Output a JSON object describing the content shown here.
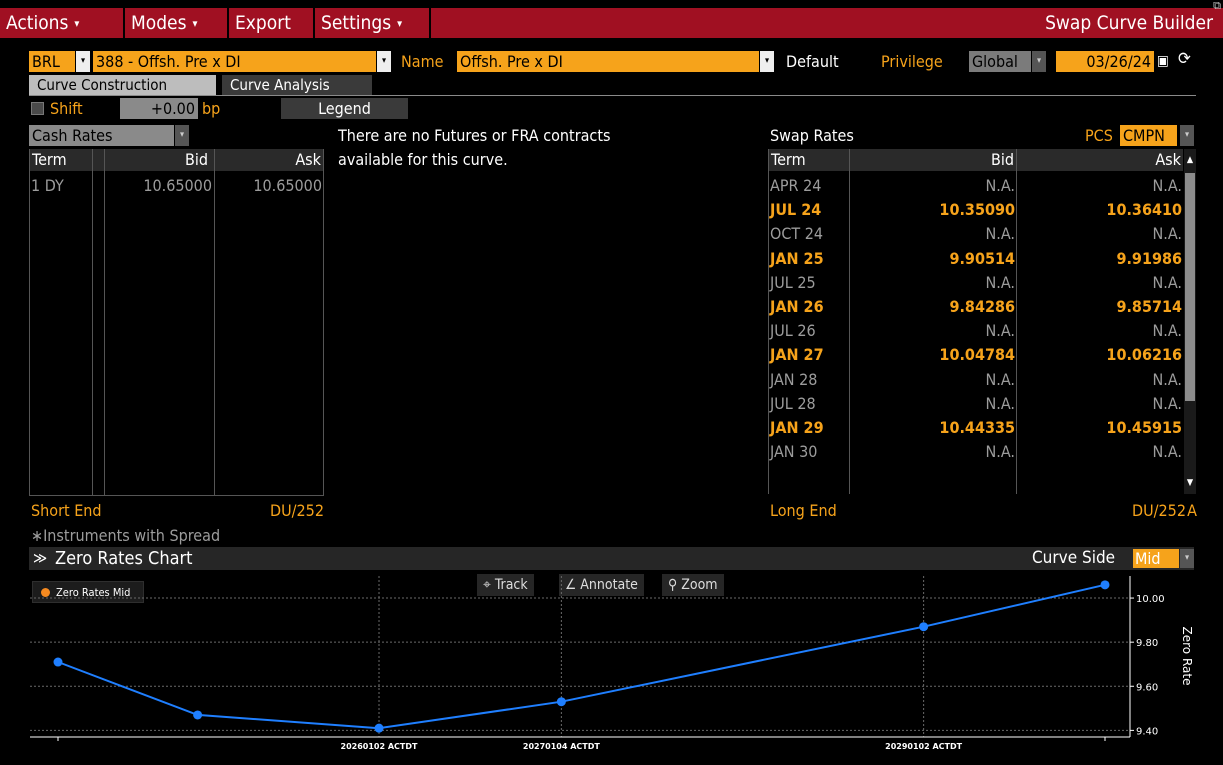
{
  "menu": {
    "actions": "Actions",
    "modes": "Modes",
    "export": "Export",
    "settings": "Settings",
    "app_title": "Swap Curve Builder"
  },
  "curve": {
    "currency": "BRL",
    "curve_id": "388 - Offsh. Pre x DI",
    "name_label": "Name",
    "name_value": "Offsh. Pre x DI",
    "default_label": "Default",
    "privilege_label": "Privilege",
    "privilege_value": "Global",
    "date": "03/26/24"
  },
  "tabs": [
    {
      "label": "Curve Construction",
      "active": true
    },
    {
      "label": "Curve Analysis",
      "active": false
    }
  ],
  "controls": {
    "shift_label": "Shift",
    "shift_value": "+0.00",
    "shift_unit": "bp",
    "legend_button": "Legend"
  },
  "cash": {
    "selector": "Cash Rates",
    "columns": [
      "Term",
      "Bid",
      "Ask"
    ],
    "rows": [
      {
        "term": "1 DY",
        "bid": "10.65000",
        "ask": "10.65000"
      }
    ],
    "short_end_label": "Short End",
    "day_count": "DU/252"
  },
  "futures_message_line1": "There are no Futures or FRA contracts",
  "futures_message_line2": "available for this curve.",
  "instruments_note": "∗Instruments with Spread",
  "swap": {
    "title": "Swap Rates",
    "source_label": "PCS",
    "source_value": "CMPN",
    "columns": [
      "Term",
      "Bid",
      "Ask"
    ],
    "rows": [
      {
        "term": "APR 24",
        "bid": "N.A.",
        "ask": "N.A.",
        "active": false
      },
      {
        "term": "JUL 24",
        "bid": "10.35090",
        "ask": "10.36410",
        "active": true
      },
      {
        "term": "OCT 24",
        "bid": "N.A.",
        "ask": "N.A.",
        "active": false
      },
      {
        "term": "JAN 25",
        "bid": "9.90514",
        "ask": "9.91986",
        "active": true
      },
      {
        "term": "JUL 25",
        "bid": "N.A.",
        "ask": "N.A.",
        "active": false
      },
      {
        "term": "JAN 26",
        "bid": "9.84286",
        "ask": "9.85714",
        "active": true
      },
      {
        "term": "JUL 26",
        "bid": "N.A.",
        "ask": "N.A.",
        "active": false
      },
      {
        "term": "JAN 27",
        "bid": "10.04784",
        "ask": "10.06216",
        "active": true
      },
      {
        "term": "JAN 28",
        "bid": "N.A.",
        "ask": "N.A.",
        "active": false
      },
      {
        "term": "JUL 28",
        "bid": "N.A.",
        "ask": "N.A.",
        "active": false
      },
      {
        "term": "JAN 29",
        "bid": "10.44335",
        "ask": "10.45915",
        "active": true
      },
      {
        "term": "JAN 30",
        "bid": "N.A.",
        "ask": "N.A.",
        "active": false
      }
    ],
    "long_end_label": "Long End",
    "day_count": "DU/252",
    "day_count_suffix": "A"
  },
  "chart": {
    "title": "Zero Rates Chart",
    "curve_side_label": "Curve Side",
    "curve_side_value": "Mid",
    "toolbar": {
      "track": "Track",
      "annotate": "Annotate",
      "zoom": "Zoom"
    },
    "legend_label": "Zero Rates Mid"
  },
  "chart_data": {
    "type": "line",
    "series": [
      {
        "name": "Zero Rates Mid",
        "x": [
          "2024-03-27",
          "2025-01-02",
          "2026-01-02",
          "2027-01-04",
          "2029-01-02",
          "2030-01-02"
        ],
        "values": [
          9.71,
          9.47,
          9.41,
          9.53,
          9.87,
          10.06
        ]
      }
    ],
    "x_tick_labels": [
      "20260102 ACTDT",
      "20270104 ACTDT",
      "20290102 ACTDT"
    ],
    "x_tick_dates": [
      "2026-01-02",
      "2027-01-04",
      "2029-01-02"
    ],
    "y_ticks": [
      9.4,
      9.6,
      9.8,
      10.0
    ],
    "y_tick_labels": [
      "9.40",
      "9.60",
      "9.80",
      "10.00"
    ],
    "ylabel": "Zero Rate",
    "ylim": [
      9.37,
      10.1
    ],
    "grid": true,
    "legend": "top-left",
    "colors": {
      "line": "#1f7fff",
      "marker": "#1f7fff",
      "legend_dot": "#f58a20"
    }
  }
}
